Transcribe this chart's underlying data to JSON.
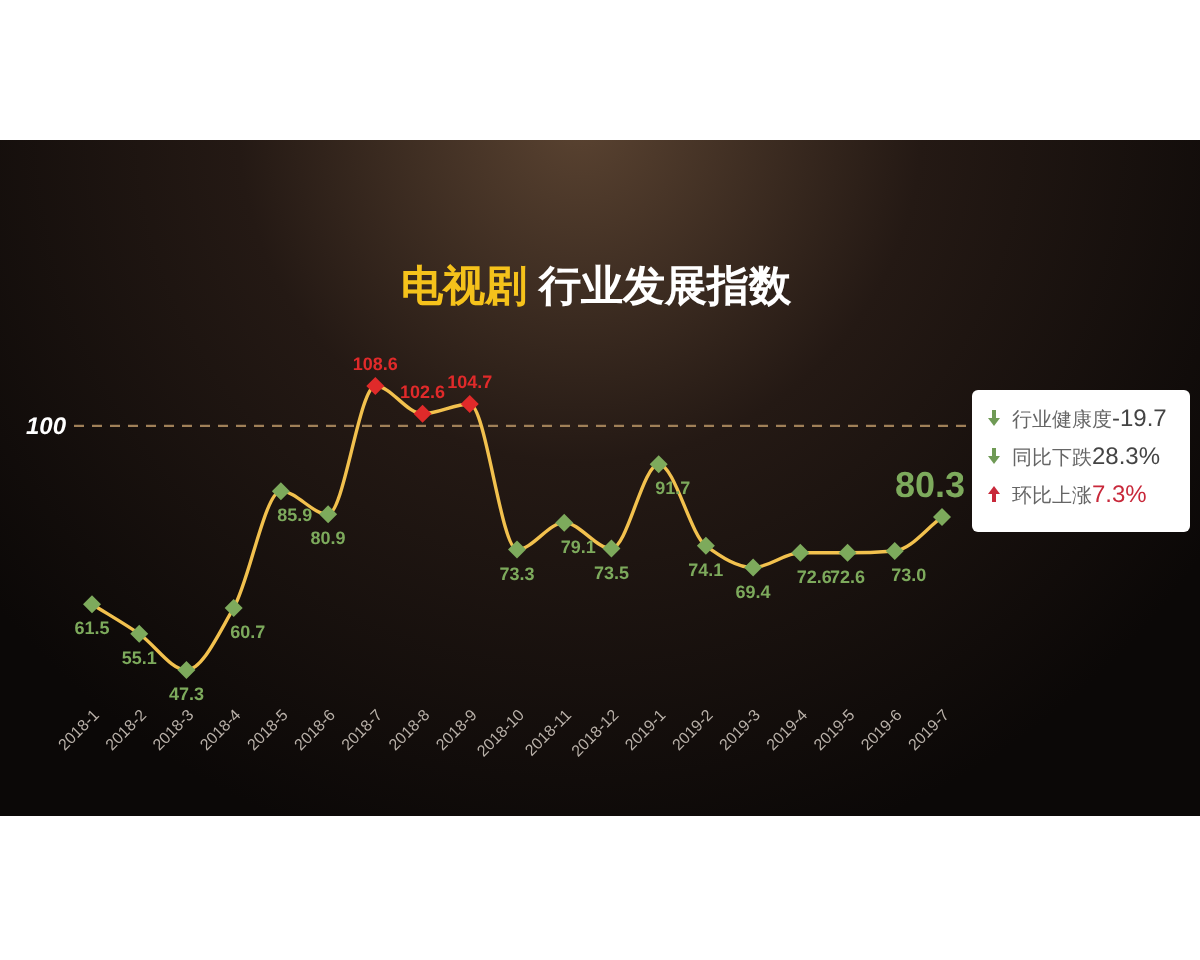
{
  "chart_data": {
    "type": "line",
    "title": "电视剧 行业发展指数",
    "categories": [
      "2018-1",
      "2018-2",
      "2018-3",
      "2018-4",
      "2018-5",
      "2018-6",
      "2018-7",
      "2018-8",
      "2018-9",
      "2018-10",
      "2018-11",
      "2018-12",
      "2019-1",
      "2019-2",
      "2019-3",
      "2019-4",
      "2019-5",
      "2019-6",
      "2019-7"
    ],
    "series": [
      {
        "color": "#f2c14e",
        "values": [
          61.5,
          55.1,
          47.3,
          60.7,
          85.9,
          80.9,
          108.6,
          102.6,
          104.7,
          73.3,
          79.1,
          73.5,
          91.7,
          74.1,
          69.4,
          72.6,
          72.6,
          73.0,
          80.3
        ],
        "value_labels": [
          "61.5",
          "55.1",
          "47.3",
          "60.7",
          "85.9",
          "80.9",
          "108.6",
          "102.6",
          "104.7",
          "73.3",
          "79.1",
          "73.5",
          "91.7",
          "74.1",
          "69.4",
          "72.6",
          "72.6",
          "73.0",
          "80.3"
        ],
        "colors": [
          "#7daa5c",
          "#7daa5c",
          "#7daa5c",
          "#7daa5c",
          "#7daa5c",
          "#7daa5c",
          "#e02a2a",
          "#e02a2a",
          "#e02a2a",
          "#7daa5c",
          "#7daa5c",
          "#7daa5c",
          "#7daa5c",
          "#7daa5c",
          "#7daa5c",
          "#7daa5c",
          "#7daa5c",
          "#7daa5c",
          "#7daa5c"
        ]
      }
    ],
    "marker": "diamond",
    "line_style": "solid",
    "tick_labels": "x",
    "ref_lines": [
      {
        "axis": "y",
        "value": 100,
        "label": "100",
        "color": "#a08058",
        "line_style": "dashed"
      }
    ],
    "annotations": [
      "行业健康度-19.7",
      "同比下跌28.3%",
      "环比上涨7.3%"
    ]
  }
}
